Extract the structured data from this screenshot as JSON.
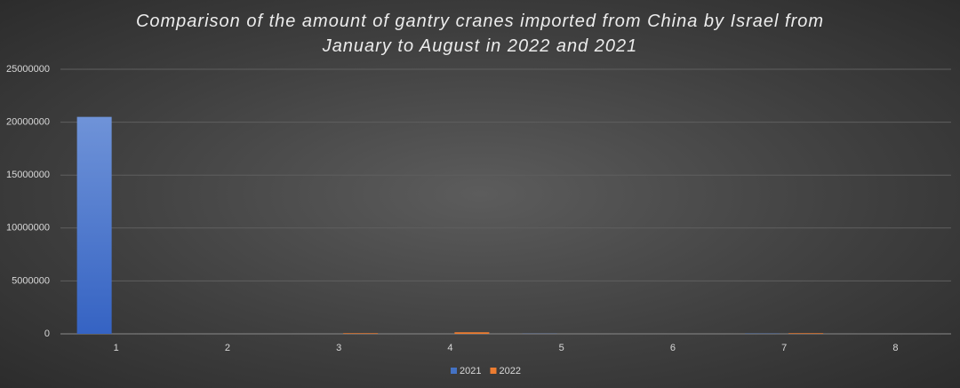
{
  "chart_data": {
    "type": "bar",
    "title": "Comparison of the amount of gantry cranes imported from China by Israel from January to August in 2022 and 2021",
    "categories": [
      "1",
      "2",
      "3",
      "4",
      "5",
      "6",
      "7",
      "8"
    ],
    "series": [
      {
        "name": "2021",
        "color": "#4472c4",
        "values": [
          20500000,
          0,
          0,
          0,
          20000,
          0,
          30000,
          0
        ]
      },
      {
        "name": "2022",
        "color": "#ed7d31",
        "values": [
          0,
          0,
          60000,
          150000,
          0,
          0,
          60000,
          0
        ]
      }
    ],
    "ylim": [
      0,
      25000000
    ],
    "yticks": [
      0,
      5000000,
      10000000,
      15000000,
      20000000,
      25000000
    ],
    "grid": true,
    "legend": "bottom"
  }
}
